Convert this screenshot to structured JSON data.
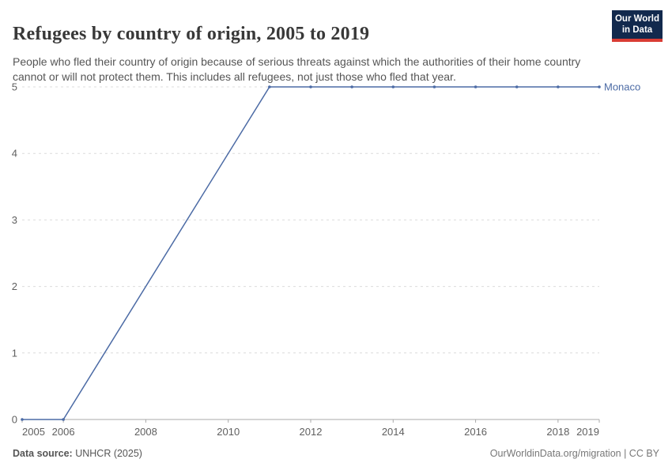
{
  "header": {
    "title": "Refugees by country of origin, 2005 to 2019",
    "subtitle": "People who fled their country of origin because of serious threats against which the authorities of their home country cannot or will not protect them. This includes all refugees, not just those who fled that year.",
    "logo": {
      "line1": "Our World",
      "line2": "in Data"
    }
  },
  "chart_data": {
    "type": "line",
    "title": "Refugees by country of origin, 2005 to 2019",
    "xlabel": "",
    "ylabel": "",
    "xlim": [
      2005,
      2019
    ],
    "ylim": [
      0,
      5
    ],
    "grid": "horizontal-dashed",
    "legend_position": "end-of-line",
    "x_ticks": [
      2005,
      2006,
      2008,
      2010,
      2012,
      2014,
      2016,
      2018,
      2019
    ],
    "y_ticks": [
      0,
      1,
      2,
      3,
      4,
      5
    ],
    "series": [
      {
        "name": "Monaco",
        "color": "#4c6ba5",
        "points": [
          [
            2005,
            0
          ],
          [
            2006,
            0
          ],
          [
            2011,
            5
          ],
          [
            2012,
            5
          ],
          [
            2013,
            5
          ],
          [
            2014,
            5
          ],
          [
            2015,
            5
          ],
          [
            2016,
            5
          ],
          [
            2017,
            5
          ],
          [
            2018,
            5
          ],
          [
            2019,
            5
          ]
        ]
      }
    ]
  },
  "footer": {
    "source_label": "Data source:",
    "source_value": " UNHCR (2025)",
    "rights": "OurWorldinData.org/migration | CC BY"
  },
  "colors": {
    "line_blue": "#4c6ba5",
    "gridline": "#dcdcdc",
    "axis": "#a9a9a9",
    "tick_text": "#5f5f5f",
    "title_text": "#383838",
    "subtitle_text": "#555555",
    "logo_navy": "#12294d",
    "logo_red": "#d93c34"
  }
}
